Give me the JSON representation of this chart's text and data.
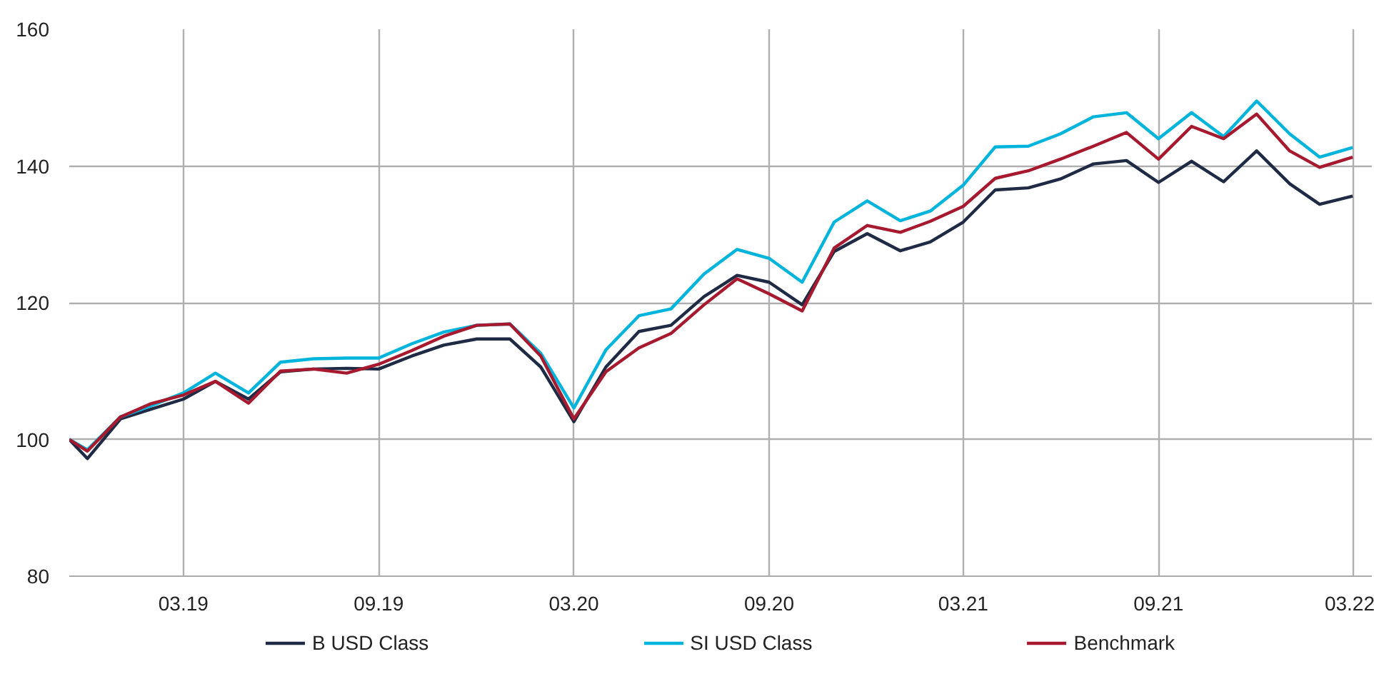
{
  "chart_data": {
    "type": "line",
    "x": [
      "2018-12-14",
      "2018-12-31",
      "2019-01-31",
      "2019-02-28",
      "2019-03-31",
      "2019-04-30",
      "2019-05-31",
      "2019-06-30",
      "2019-07-31",
      "2019-08-31",
      "2019-09-30",
      "2019-10-31",
      "2019-11-30",
      "2019-12-31",
      "2020-01-31",
      "2020-02-29",
      "2020-03-31",
      "2020-04-30",
      "2020-05-31",
      "2020-06-30",
      "2020-07-31",
      "2020-08-31",
      "2020-09-30",
      "2020-10-31",
      "2020-11-30",
      "2020-12-31",
      "2021-01-31",
      "2021-02-28",
      "2021-03-31",
      "2021-04-30",
      "2021-05-31",
      "2021-06-30",
      "2021-07-31",
      "2021-08-31",
      "2021-09-30",
      "2021-10-31",
      "2021-11-30",
      "2021-12-31",
      "2022-01-31",
      "2022-02-28",
      "2022-03-31"
    ],
    "series": [
      {
        "name": "B USD Class",
        "color": "#1f2a44",
        "values": [
          100,
          97.2,
          103.0,
          104.4,
          105.9,
          108.5,
          105.9,
          109.9,
          110.3,
          110.4,
          110.3,
          112.2,
          113.8,
          114.7,
          114.7,
          110.6,
          102.6,
          110.6,
          115.8,
          116.7,
          120.9,
          124.0,
          123.0,
          119.7,
          127.5,
          130.1,
          127.6,
          128.9,
          131.8,
          136.5,
          136.8,
          138.1,
          140.3,
          140.8,
          137.6,
          140.7,
          137.7,
          142.2,
          137.4,
          134.4,
          135.6
        ]
      },
      {
        "name": "SI USD Class",
        "color": "#00b4dc",
        "values": [
          100,
          98.5,
          103.3,
          104.9,
          106.8,
          109.7,
          106.8,
          111.3,
          111.8,
          111.9,
          111.9,
          114.0,
          115.7,
          116.7,
          116.9,
          112.6,
          104.6,
          113.1,
          118.1,
          119.1,
          124.2,
          127.8,
          126.5,
          123.0,
          131.8,
          134.9,
          132.0,
          133.4,
          137.2,
          142.8,
          142.9,
          144.7,
          147.2,
          147.8,
          144.0,
          147.8,
          144.3,
          149.5,
          144.7,
          141.3,
          142.7
        ]
      },
      {
        "name": "Benchmark",
        "color": "#a6192e",
        "values": [
          100,
          98.3,
          103.3,
          105.2,
          106.5,
          108.5,
          105.3,
          110.0,
          110.3,
          109.7,
          111.0,
          113.0,
          115.1,
          116.7,
          116.9,
          112.2,
          103.0,
          109.9,
          113.4,
          115.5,
          119.7,
          123.5,
          121.3,
          118.8,
          128.0,
          131.3,
          130.3,
          131.9,
          134.1,
          138.2,
          139.3,
          141.0,
          142.9,
          144.9,
          141.0,
          145.8,
          144.0,
          147.6,
          142.2,
          139.8,
          141.3
        ]
      }
    ],
    "xlim": [
      "2018-12-14",
      "2022-04-18"
    ],
    "xticks": [
      {
        "value": "2019-03-31",
        "label": "03.19"
      },
      {
        "value": "2019-09-30",
        "label": "09.19"
      },
      {
        "value": "2020-03-31",
        "label": "03.20"
      },
      {
        "value": "2020-09-30",
        "label": "09.20"
      },
      {
        "value": "2021-03-31",
        "label": "03.21"
      },
      {
        "value": "2021-09-30",
        "label": "09.21"
      },
      {
        "value": "2022-03-31",
        "label": "03.22"
      }
    ],
    "ylim": [
      80,
      160
    ],
    "yticks": [
      80,
      100,
      120,
      140,
      160
    ],
    "grid": true,
    "legend": "bottom",
    "marker": "none",
    "line_style": "solid"
  }
}
